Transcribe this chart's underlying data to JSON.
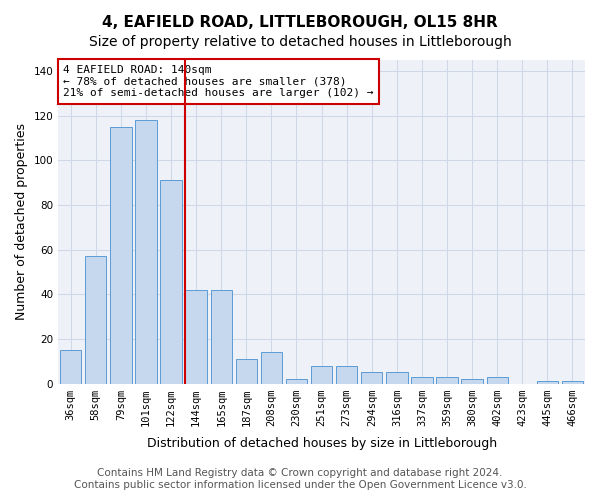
{
  "title": "4, EAFIELD ROAD, LITTLEBOROUGH, OL15 8HR",
  "subtitle": "Size of property relative to detached houses in Littleborough",
  "xlabel": "Distribution of detached houses by size in Littleborough",
  "ylabel": "Number of detached properties",
  "categories": [
    "36sqm",
    "58sqm",
    "79sqm",
    "101sqm",
    "122sqm",
    "144sqm",
    "165sqm",
    "187sqm",
    "208sqm",
    "230sqm",
    "251sqm",
    "273sqm",
    "294sqm",
    "316sqm",
    "337sqm",
    "359sqm",
    "380sqm",
    "402sqm",
    "423sqm",
    "445sqm",
    "466sqm"
  ],
  "values": [
    15,
    57,
    115,
    118,
    91,
    42,
    42,
    11,
    14,
    2,
    8,
    8,
    5,
    5,
    3,
    3,
    2,
    3,
    0,
    1,
    1
  ],
  "bar_color": "#c5d8ed",
  "bar_edge_color": "#5b9bd5",
  "marker_index": 5,
  "marker_color": "#cc0000",
  "annotation_line1": "4 EAFIELD ROAD: 140sqm",
  "annotation_line2": "← 78% of detached houses are smaller (378)",
  "annotation_line3": "21% of semi-detached houses are larger (102) →",
  "annotation_box_color": "#cc0000",
  "ylim": [
    0,
    145
  ],
  "yticks": [
    0,
    20,
    40,
    60,
    80,
    100,
    120,
    140
  ],
  "grid_color": "#d0d8e8",
  "background_color": "#eef2f8",
  "footer_line1": "Contains HM Land Registry data © Crown copyright and database right 2024.",
  "footer_line2": "Contains public sector information licensed under the Open Government Licence v3.0.",
  "title_fontsize": 11,
  "subtitle_fontsize": 10,
  "xlabel_fontsize": 9,
  "ylabel_fontsize": 9,
  "tick_fontsize": 7.5,
  "annotation_fontsize": 8,
  "footer_fontsize": 7.5
}
